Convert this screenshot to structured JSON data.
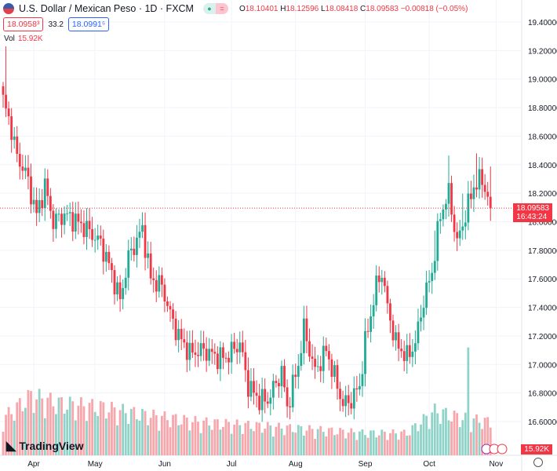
{
  "header": {
    "title": "U.S. Dollar / Mexican Peso · 1D · FXCM",
    "open_label": "O",
    "open": "18.10401",
    "high_label": "H",
    "high": "18.12596",
    "low_label": "L",
    "low": "18.08418",
    "close_label": "C",
    "close": "18.09583",
    "change": "−0.00818 (−0.05%)",
    "sell": "18.0958³",
    "spread": "33.2",
    "buy": "18.0991⁵",
    "pill_eq": "="
  },
  "volume": {
    "label": "Vol",
    "value": "15.92K",
    "tag": "15.92K"
  },
  "price_tag": {
    "price": "18.09583",
    "countdown": "16:43:24"
  },
  "logo": "TradingView",
  "colors": {
    "up": "#22ab94",
    "down": "#f23645",
    "vol_up": "#8fd3c8",
    "vol_down": "#f7a6ab"
  },
  "chart_data": {
    "type": "candlestick",
    "title": "U.S. Dollar / Mexican Peso · 1D · FXCM",
    "y_ticks": [
      "19.40000",
      "19.20000",
      "19.00000",
      "18.80000",
      "18.60000",
      "18.40000",
      "18.20000",
      "18.00000",
      "17.80000",
      "17.60000",
      "17.40000",
      "17.20000",
      "17.00000",
      "16.80000",
      "16.60000"
    ],
    "ylim": [
      16.6,
      19.4
    ],
    "x_ticks": [
      {
        "label": "Apr",
        "bar": 11
      },
      {
        "label": "May",
        "bar": 33
      },
      {
        "label": "Jun",
        "bar": 58
      },
      {
        "label": "Jul",
        "bar": 82
      },
      {
        "label": "Aug",
        "bar": 105
      },
      {
        "label": "Sep",
        "bar": 130
      },
      {
        "label": "Oct",
        "bar": 153
      },
      {
        "label": "Nov",
        "bar": 177
      }
    ],
    "bar_count": 176,
    "close_waypoints": [
      [
        0,
        18.85
      ],
      [
        3,
        18.65
      ],
      [
        5,
        18.45
      ],
      [
        8,
        18.35
      ],
      [
        12,
        18.05
      ],
      [
        15,
        18.25
      ],
      [
        18,
        18.0
      ],
      [
        22,
        18.05
      ],
      [
        25,
        18.02
      ],
      [
        30,
        17.95
      ],
      [
        35,
        17.85
      ],
      [
        38,
        17.7
      ],
      [
        42,
        17.45
      ],
      [
        45,
        17.75
      ],
      [
        50,
        17.95
      ],
      [
        53,
        17.6
      ],
      [
        57,
        17.55
      ],
      [
        60,
        17.35
      ],
      [
        63,
        17.2
      ],
      [
        67,
        17.08
      ],
      [
        72,
        17.1
      ],
      [
        77,
        17.05
      ],
      [
        80,
        17.05
      ],
      [
        85,
        17.15
      ],
      [
        88,
        16.85
      ],
      [
        92,
        16.75
      ],
      [
        95,
        16.75
      ],
      [
        100,
        16.95
      ],
      [
        102,
        16.7
      ],
      [
        106,
        17.0
      ],
      [
        108,
        17.25
      ],
      [
        112,
        16.95
      ],
      [
        116,
        17.1
      ],
      [
        120,
        16.85
      ],
      [
        122,
        16.72
      ],
      [
        125,
        16.75
      ],
      [
        128,
        16.85
      ],
      [
        130,
        17.15
      ],
      [
        134,
        17.55
      ],
      [
        136,
        17.65
      ],
      [
        138,
        17.4
      ],
      [
        141,
        17.15
      ],
      [
        145,
        17.05
      ],
      [
        148,
        17.15
      ],
      [
        151,
        17.45
      ],
      [
        154,
        17.65
      ],
      [
        157,
        18.05
      ],
      [
        160,
        18.2
      ],
      [
        163,
        17.85
      ],
      [
        166,
        18.05
      ],
      [
        169,
        18.25
      ],
      [
        172,
        18.3
      ],
      [
        175,
        18.1
      ]
    ],
    "volume_waypoints": [
      [
        0,
        50
      ],
      [
        10,
        80
      ],
      [
        20,
        70
      ],
      [
        35,
        65
      ],
      [
        50,
        55
      ],
      [
        70,
        45
      ],
      [
        90,
        40
      ],
      [
        110,
        35
      ],
      [
        130,
        30
      ],
      [
        145,
        30
      ],
      [
        155,
        60
      ],
      [
        165,
        50
      ],
      [
        175,
        45
      ]
    ],
    "last_price": 18.09583
  }
}
